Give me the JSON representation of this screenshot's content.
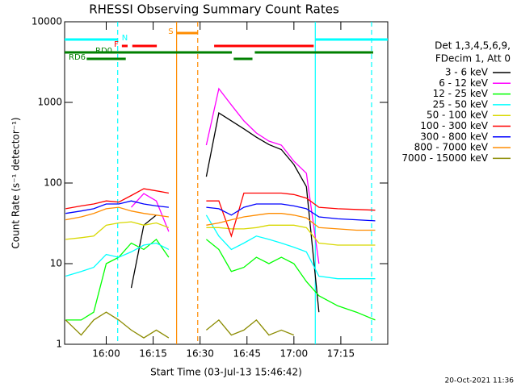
{
  "chart_data": {
    "type": "line",
    "title": "RHESSI Observing Summary Count Rates",
    "x_label": "Start Time (03-Jul-13 15:46:42)",
    "y_label": "Count Rate (s⁻¹ detector⁻¹)",
    "legend_header": [
      "Det 1,3,4,5,6,9,",
      "FDecim 1, Att 0"
    ],
    "timestamp": "20-Oct-2021 11:36",
    "log_y": true,
    "xlim": [
      "15:46:42",
      "17:30:00"
    ],
    "xticks": [
      "16:00",
      "16:15",
      "16:30",
      "16:45",
      "17:00",
      "17:15"
    ],
    "ylim": [
      1,
      10000
    ],
    "yticks": [
      1,
      10,
      100,
      1000,
      10000
    ],
    "x": [
      "15:47",
      "15:52",
      "15:56",
      "16:00",
      "16:04",
      "16:08",
      "16:12",
      "16:16",
      "16:20",
      "16:26",
      "16:32",
      "16:36",
      "16:40",
      "16:44",
      "16:48",
      "16:52",
      "16:56",
      "17:00",
      "17:04",
      "17:08",
      "17:14",
      "17:20",
      "17:26"
    ],
    "series": [
      {
        "name": "3 - 6 keV",
        "color": "#000000",
        "values": [
          null,
          null,
          null,
          null,
          null,
          5,
          30,
          40,
          null,
          null,
          120,
          740,
          590,
          470,
          370,
          300,
          260,
          170,
          90,
          2.5,
          null,
          null,
          null
        ]
      },
      {
        "name": "6 - 12 keV",
        "color": "#ff00ff",
        "values": [
          null,
          null,
          null,
          null,
          null,
          50,
          74,
          60,
          25,
          null,
          295,
          1480,
          930,
          590,
          417,
          331,
          295,
          186,
          132,
          10,
          null,
          null,
          null
        ]
      },
      {
        "name": "12 - 25 keV",
        "color": "#00ff00",
        "values": [
          2,
          2,
          2.5,
          10,
          12,
          18,
          15,
          20,
          12,
          null,
          20,
          15,
          8,
          9,
          12,
          10,
          12,
          10,
          6,
          4,
          3,
          2.5,
          2
        ]
      },
      {
        "name": "25 - 50 keV",
        "color": "#00ffff",
        "values": [
          7,
          8,
          9,
          13,
          12,
          14,
          17,
          18,
          15,
          null,
          40,
          22,
          15,
          18,
          22,
          20,
          18,
          16,
          14,
          7,
          6.5,
          6.5,
          6.5
        ]
      },
      {
        "name": "50 - 100 keV",
        "color": "#d8d800",
        "values": [
          20,
          21,
          22,
          30,
          32,
          33,
          30,
          32,
          28,
          null,
          28,
          28,
          27,
          27,
          28,
          30,
          30,
          30,
          28,
          18,
          17,
          17,
          17
        ]
      },
      {
        "name": "100 - 300 keV",
        "color": "#ff0000",
        "values": [
          48,
          52,
          55,
          60,
          58,
          70,
          85,
          80,
          75,
          null,
          60,
          60,
          22,
          75,
          75,
          75,
          75,
          72,
          65,
          50,
          48,
          47,
          46
        ]
      },
      {
        "name": "300 - 800 keV",
        "color": "#0000ff",
        "values": [
          42,
          45,
          48,
          55,
          55,
          60,
          55,
          52,
          50,
          null,
          50,
          48,
          40,
          50,
          55,
          55,
          55,
          52,
          48,
          38,
          36,
          35,
          34
        ]
      },
      {
        "name": "800 - 7000 keV",
        "color": "#ff8c00",
        "values": [
          35,
          38,
          42,
          48,
          50,
          45,
          42,
          40,
          38,
          null,
          30,
          32,
          35,
          38,
          40,
          42,
          42,
          40,
          37,
          28,
          27,
          26,
          26
        ]
      },
      {
        "name": "7000 - 15000 keV",
        "color": "#8b8b00",
        "values": [
          2,
          1.3,
          2,
          2.5,
          2,
          1.5,
          1.2,
          1.5,
          1.2,
          null,
          1.5,
          2,
          1.3,
          1.5,
          2,
          1.3,
          1.5,
          1.3,
          null,
          null,
          null,
          null,
          null
        ]
      }
    ],
    "vertical_lines": [
      {
        "x": "16:03:40",
        "color": "#00ffff",
        "dashed": true
      },
      {
        "x": "17:06:50",
        "color": "#00ffff",
        "dashed": false
      },
      {
        "x": "17:24:50",
        "color": "#00ffff",
        "dashed": true
      },
      {
        "x": "16:22:30",
        "color": "#ff8c00",
        "dashed": false
      },
      {
        "x": "16:29:15",
        "color": "#ff8c00",
        "dashed": true
      }
    ],
    "flags": [
      {
        "label": "S",
        "color": "#ff8c00",
        "segments": [
          [
            "16:22:30",
            "16:29:15"
          ]
        ]
      },
      {
        "label": "N",
        "color": "#00ffff",
        "segments": [
          [
            "15:46:42",
            "16:03:40"
          ],
          [
            "17:06:50",
            "17:30:00"
          ]
        ]
      },
      {
        "label": "F",
        "color": "#ff0000",
        "segments": [
          [
            "16:05:00",
            "16:06:50"
          ],
          [
            "16:08:20",
            "16:16:10"
          ],
          [
            "16:34:30",
            "17:06:20"
          ]
        ]
      },
      {
        "label": "RD0",
        "color": "#008000",
        "segments": [
          [
            "15:46:42",
            "16:40:10"
          ],
          [
            "16:47:30",
            "17:25:20"
          ]
        ]
      },
      {
        "label": "RD6",
        "color": "#008000",
        "segments": [
          [
            "15:53:45",
            "16:06:15"
          ],
          [
            "16:40:45",
            "16:46:45"
          ]
        ]
      }
    ]
  }
}
